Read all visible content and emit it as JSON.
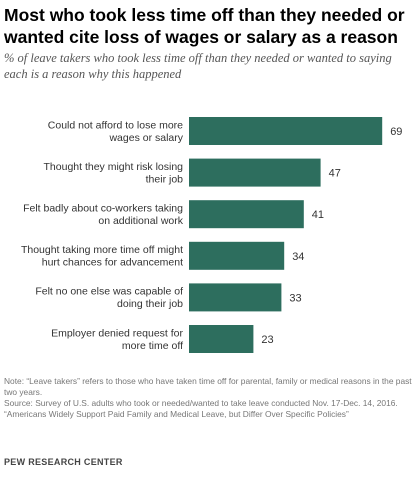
{
  "title": "Most who took less time off than they needed or wanted cite loss of wages or salary as a reason",
  "subtitle": "% of leave takers who took less time off than they needed or wanted to saying each is a reason why this happened",
  "chart_data": {
    "type": "bar",
    "orientation": "horizontal",
    "categories": [
      [
        "Could not afford to lose more",
        "wages or salary"
      ],
      [
        "Thought they might risk losing",
        "their job"
      ],
      [
        "Felt badly about co-workers taking",
        "on additional work"
      ],
      [
        "Thought taking more time off might",
        "hurt chances for advancement"
      ],
      [
        "Felt no one else was capable of",
        "doing their job"
      ],
      [
        "Employer denied request for",
        "more time off"
      ]
    ],
    "values": [
      69,
      47,
      41,
      34,
      33,
      23
    ],
    "xlim": [
      0,
      75
    ],
    "bar_color": "#2d6e5e",
    "grid": false,
    "legend": "none"
  },
  "footer": {
    "note": "Note: “Leave takers” refers to those who have taken time off for parental, family or medical reasons in the past two years.",
    "source": "Source: Survey of U.S. adults who took or needed/wanted to take leave conducted Nov. 17-Dec. 14, 2016.",
    "report": "“Americans Widely Support Paid Family and Medical Leave, but Differ Over Specific Policies”",
    "org": "PEW RESEARCH CENTER"
  }
}
